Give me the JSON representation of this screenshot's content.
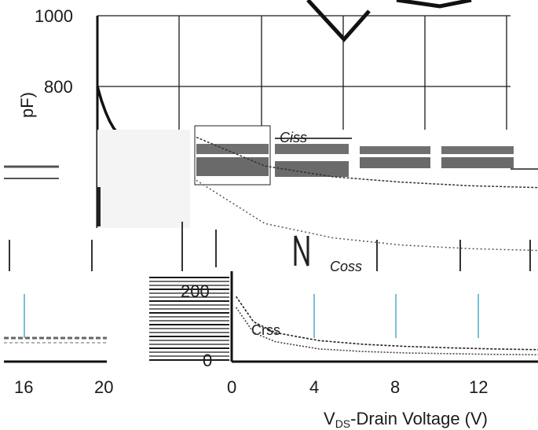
{
  "chart_data": {
    "type": "line",
    "title": "",
    "panels": [
      {
        "panel": "top",
        "ylabel_fragment": "pF)",
        "y_ticks": [
          "1000",
          "800"
        ],
        "ylim": [
          600,
          1000
        ],
        "xlim": [
          0,
          20
        ],
        "x_ticks_bottom": [
          "16",
          "20"
        ],
        "series": [
          {
            "name": "",
            "x": [
              0,
              0.2,
              0.4,
              0.6,
              0.8,
              1.0,
              1.2
            ],
            "y": [
              800,
              760,
              728,
              702,
              682,
              667,
              655
            ]
          }
        ]
      },
      {
        "panel": "middle",
        "labels": [
          "Coss",
          "Ciss"
        ],
        "series": [
          {
            "name": "Ciss",
            "x": [
              0,
              4,
              8,
              12,
              16,
              20
            ],
            "y": [
              640,
              560,
              530,
              515,
              505,
              500
            ]
          },
          {
            "name": "Coss",
            "x": [
              0,
              4,
              8,
              12,
              16,
              20
            ],
            "y": [
              520,
              400,
              360,
              340,
              330,
              325
            ]
          }
        ]
      },
      {
        "panel": "bottom",
        "labels": [
          "Coss",
          "Crss"
        ],
        "y_ticks": [
          "200",
          "0"
        ],
        "ylim": [
          0,
          250
        ],
        "xlim": [
          0,
          14
        ],
        "x_ticks": [
          "0",
          "4",
          "8",
          "12"
        ],
        "xlabel": "VDS-Drain Voltage (V)",
        "series": [
          {
            "name": "Coss",
            "x": [
              0.2,
              1,
              2,
              4,
              6,
              8,
              10,
              12,
              14
            ],
            "y": [
              180,
              110,
              80,
              58,
              48,
              42,
              38,
              35,
              33
            ]
          },
          {
            "name": "Crss",
            "x": [
              0.2,
              1,
              2,
              4,
              6,
              8,
              10,
              12,
              14
            ],
            "y": [
              150,
              80,
              55,
              35,
              28,
              24,
              22,
              20,
              19
            ]
          }
        ]
      }
    ]
  }
}
